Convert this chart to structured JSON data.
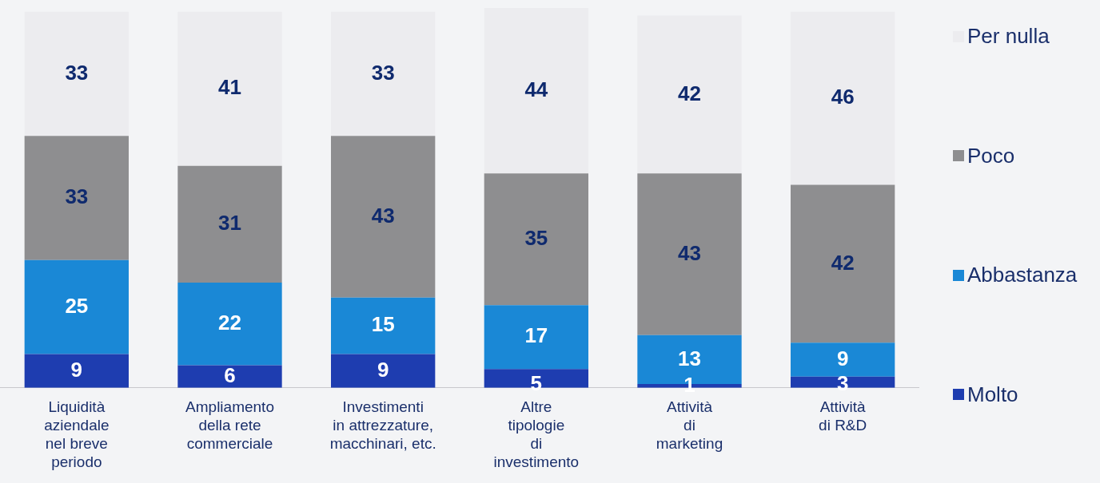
{
  "chart_data": {
    "type": "bar",
    "stacked": true,
    "data_labels": true,
    "legend": "right",
    "grid": false,
    "ylim": [
      0,
      101
    ],
    "categories": [
      "Liquidità\naziendale\nnel breve\nperiodo",
      "Ampliamento\ndella rete\ncommerciale",
      "Investimenti\nin attrezzature,\nmacchinari, etc.",
      "Altre\ntipologie\ndi\ninvestimento",
      "Attività\ndi\nmarketing",
      "Attività\ndi R&D"
    ],
    "series": [
      {
        "name": "Molto",
        "color": "#1e3db0",
        "values": [
          9,
          6,
          9,
          5,
          1,
          3
        ]
      },
      {
        "name": "Abbastanza",
        "color": "#1a88d6",
        "values": [
          25,
          22,
          15,
          17,
          13,
          9
        ]
      },
      {
        "name": "Poco",
        "color": "#8e8e90",
        "values": [
          33,
          31,
          43,
          35,
          43,
          42
        ]
      },
      {
        "name": "Per nulla",
        "color": "#ececef",
        "values": [
          33,
          41,
          33,
          44,
          42,
          46
        ]
      }
    ]
  }
}
